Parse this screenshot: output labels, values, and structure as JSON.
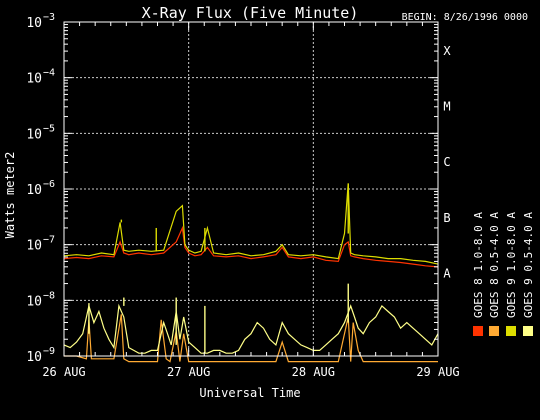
{
  "chart_data": {
    "type": "line",
    "title": "X-Ray Flux (Five Minute)",
    "begin_label": "BEGIN: 8/26/1996 0000",
    "ylabel": "Watts meter2",
    "xlabel": "Universal Time",
    "y_scale": "log",
    "ylim_exponents": [
      -9,
      -3
    ],
    "y_tick_exponents": [
      -9,
      -8,
      -7,
      -6,
      -5,
      -4,
      -3
    ],
    "y_tick_base": "10",
    "x_ticks": [
      "26 AUG",
      "27 AUG",
      "28 AUG",
      "29 AUG"
    ],
    "xlim_days": [
      0,
      3
    ],
    "class_labels": [
      "A",
      "B",
      "C",
      "M",
      "X"
    ],
    "class_levels_exponent": [
      -8,
      -7,
      -6,
      -5,
      -4
    ],
    "series": [
      {
        "name": "GOES 8 1.0-8.0 A",
        "color": "#ff3300",
        "x_days": [
          0.0,
          0.1,
          0.2,
          0.3,
          0.4,
          0.45,
          0.48,
          0.52,
          0.6,
          0.7,
          0.8,
          0.9,
          0.95,
          0.97,
          1.0,
          1.05,
          1.1,
          1.15,
          1.2,
          1.3,
          1.4,
          1.5,
          1.6,
          1.7,
          1.75,
          1.8,
          1.9,
          2.0,
          2.1,
          2.2,
          2.25,
          2.28,
          2.3,
          2.33,
          2.4,
          2.5,
          2.6,
          2.7,
          2.8,
          2.9,
          3.0
        ],
        "log10_values": [
          -7.25,
          -7.23,
          -7.25,
          -7.2,
          -7.22,
          -6.95,
          -7.15,
          -7.18,
          -7.15,
          -7.18,
          -7.15,
          -6.95,
          -6.7,
          -7.05,
          -7.15,
          -7.2,
          -7.18,
          -7.05,
          -7.2,
          -7.22,
          -7.2,
          -7.25,
          -7.22,
          -7.18,
          -7.05,
          -7.22,
          -7.25,
          -7.22,
          -7.28,
          -7.3,
          -7.0,
          -6.95,
          -7.2,
          -7.22,
          -7.25,
          -7.28,
          -7.3,
          -7.32,
          -7.35,
          -7.38,
          -7.4
        ]
      },
      {
        "name": "GOES 8 0.5-4.0 A",
        "color": "#ffaa33",
        "x_days": [
          0.0,
          0.1,
          0.18,
          0.2,
          0.22,
          0.3,
          0.36,
          0.4,
          0.46,
          0.48,
          0.52,
          0.6,
          0.7,
          0.75,
          0.78,
          0.82,
          0.85,
          0.9,
          0.93,
          0.96,
          1.0,
          1.05,
          1.1,
          1.2,
          1.3,
          1.4,
          1.5,
          1.6,
          1.7,
          1.75,
          1.8,
          1.9,
          2.0,
          2.1,
          2.2,
          2.28,
          2.3,
          2.32,
          2.36,
          2.4,
          2.5,
          2.6,
          2.7,
          2.8,
          2.9,
          3.0
        ],
        "log10_values": [
          -9.0,
          -9.0,
          -9.05,
          -8.35,
          -9.05,
          -9.05,
          -9.05,
          -9.05,
          -8.25,
          -9.05,
          -9.1,
          -9.1,
          -9.1,
          -9.1,
          -8.35,
          -9.05,
          -9.1,
          -8.55,
          -9.1,
          -8.6,
          -9.1,
          -9.1,
          -9.1,
          -9.1,
          -9.1,
          -9.1,
          -9.1,
          -9.1,
          -9.1,
          -8.75,
          -9.1,
          -9.1,
          -9.1,
          -9.1,
          -9.1,
          -8.3,
          -9.1,
          -8.4,
          -8.9,
          -9.1,
          -9.1,
          -9.1,
          -9.1,
          -9.1,
          -9.1,
          -9.1
        ]
      },
      {
        "name": "GOES 9 1.0-8.0 A",
        "color": "#dddd00",
        "x_days": [
          0.0,
          0.1,
          0.2,
          0.3,
          0.4,
          0.45,
          0.48,
          0.52,
          0.6,
          0.7,
          0.8,
          0.9,
          0.95,
          0.97,
          1.0,
          1.05,
          1.1,
          1.15,
          1.2,
          1.3,
          1.4,
          1.5,
          1.6,
          1.7,
          1.75,
          1.8,
          1.9,
          2.0,
          2.1,
          2.2,
          2.25,
          2.28,
          2.3,
          2.33,
          2.4,
          2.5,
          2.6,
          2.7,
          2.8,
          2.9,
          3.0
        ],
        "log10_values": [
          -7.2,
          -7.18,
          -7.2,
          -7.15,
          -7.18,
          -6.6,
          -7.1,
          -7.12,
          -7.1,
          -7.12,
          -7.1,
          -6.4,
          -6.3,
          -7.0,
          -7.1,
          -7.15,
          -7.12,
          -6.7,
          -7.15,
          -7.18,
          -7.15,
          -7.2,
          -7.18,
          -7.12,
          -7.0,
          -7.18,
          -7.2,
          -7.18,
          -7.22,
          -7.25,
          -6.8,
          -5.9,
          -7.15,
          -7.18,
          -7.2,
          -7.22,
          -7.25,
          -7.25,
          -7.28,
          -7.3,
          -7.35
        ]
      },
      {
        "name": "GOES 9 0.5-4.0 A",
        "color": "#ffff88",
        "x_days": [
          0.0,
          0.05,
          0.1,
          0.15,
          0.2,
          0.24,
          0.28,
          0.32,
          0.36,
          0.4,
          0.44,
          0.48,
          0.52,
          0.56,
          0.6,
          0.65,
          0.7,
          0.75,
          0.8,
          0.83,
          0.86,
          0.9,
          0.93,
          0.96,
          1.0,
          1.05,
          1.1,
          1.15,
          1.2,
          1.25,
          1.3,
          1.35,
          1.4,
          1.45,
          1.5,
          1.55,
          1.6,
          1.65,
          1.7,
          1.75,
          1.8,
          1.85,
          1.9,
          1.95,
          2.0,
          2.05,
          2.1,
          2.15,
          2.2,
          2.25,
          2.3,
          2.33,
          2.36,
          2.4,
          2.45,
          2.5,
          2.55,
          2.6,
          2.65,
          2.7,
          2.75,
          2.8,
          2.85,
          2.9,
          2.95,
          3.0
        ],
        "log10_values": [
          -8.8,
          -8.85,
          -8.75,
          -8.6,
          -8.1,
          -8.4,
          -8.2,
          -8.5,
          -8.7,
          -8.85,
          -8.1,
          -8.3,
          -8.85,
          -8.9,
          -8.95,
          -8.95,
          -8.9,
          -8.9,
          -8.4,
          -8.6,
          -8.8,
          -8.2,
          -8.7,
          -8.3,
          -8.75,
          -8.85,
          -8.95,
          -8.95,
          -8.9,
          -8.9,
          -8.95,
          -8.95,
          -8.9,
          -8.7,
          -8.6,
          -8.4,
          -8.5,
          -8.7,
          -8.8,
          -8.4,
          -8.6,
          -8.7,
          -8.8,
          -8.85,
          -8.9,
          -8.9,
          -8.8,
          -8.7,
          -8.6,
          -8.4,
          -8.1,
          -8.3,
          -8.5,
          -8.6,
          -8.4,
          -8.3,
          -8.1,
          -8.2,
          -8.3,
          -8.5,
          -8.4,
          -8.5,
          -8.6,
          -8.7,
          -8.8,
          -8.6
        ]
      }
    ],
    "spikes": [
      {
        "series": 2,
        "x_days": 0.46,
        "peak_log10": -6.55
      },
      {
        "series": 2,
        "x_days": 0.74,
        "peak_log10": -6.7
      },
      {
        "series": 2,
        "x_days": 0.91,
        "peak_log10": -6.4
      },
      {
        "series": 2,
        "x_days": 0.96,
        "peak_log10": -6.3
      },
      {
        "series": 2,
        "x_days": 1.13,
        "peak_log10": -6.7
      },
      {
        "series": 2,
        "x_days": 2.28,
        "peak_log10": -5.9
      },
      {
        "series": 3,
        "x_days": 0.2,
        "peak_log10": -8.05
      },
      {
        "series": 3,
        "x_days": 0.48,
        "peak_log10": -7.95
      },
      {
        "series": 3,
        "x_days": 0.9,
        "peak_log10": -7.95
      },
      {
        "series": 3,
        "x_days": 1.13,
        "peak_log10": -8.1
      },
      {
        "series": 3,
        "x_days": 2.28,
        "peak_log10": -7.7
      }
    ]
  }
}
